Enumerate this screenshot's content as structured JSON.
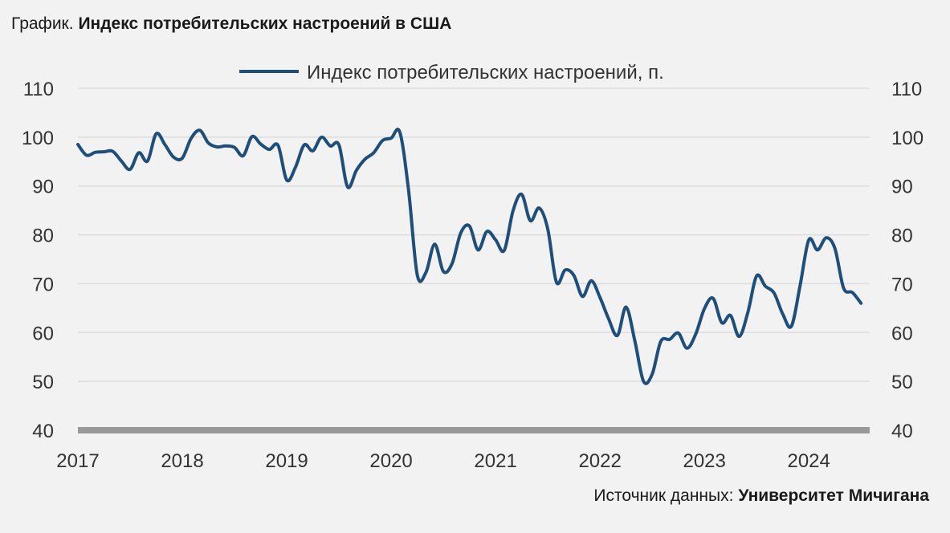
{
  "title": {
    "prefix": "График.",
    "main": "Индекс потребительских настроений в США"
  },
  "source": {
    "prefix": "Источник данных:",
    "name": "Университет Мичигана"
  },
  "colors": {
    "line": "#1f4e79",
    "axis": "#999999",
    "grid": "#dcdcdc",
    "background": "#f2f2f2"
  },
  "chart_data": {
    "type": "line",
    "title": "Индекс потребительских настроений в США",
    "legend": {
      "position": "top-center"
    },
    "grid": true,
    "ylim": [
      40,
      110
    ],
    "yticks": [
      110,
      100,
      90,
      80,
      70,
      60,
      50,
      40
    ],
    "xlim": [
      2017.0,
      2024.583
    ],
    "xticks": [
      "2017",
      "2018",
      "2019",
      "2020",
      "2021",
      "2022",
      "2023",
      "2024"
    ],
    "series": [
      {
        "name": "Индекс потребительских настроений, п.",
        "x": [
          2017.0,
          2017.083,
          2017.167,
          2017.25,
          2017.333,
          2017.417,
          2017.5,
          2017.583,
          2017.667,
          2017.75,
          2017.833,
          2017.917,
          2018.0,
          2018.083,
          2018.167,
          2018.25,
          2018.333,
          2018.417,
          2018.5,
          2018.583,
          2018.667,
          2018.75,
          2018.833,
          2018.917,
          2019.0,
          2019.083,
          2019.167,
          2019.25,
          2019.333,
          2019.417,
          2019.5,
          2019.583,
          2019.667,
          2019.75,
          2019.833,
          2019.917,
          2020.0,
          2020.083,
          2020.167,
          2020.25,
          2020.333,
          2020.417,
          2020.5,
          2020.583,
          2020.667,
          2020.75,
          2020.833,
          2020.917,
          2021.0,
          2021.083,
          2021.167,
          2021.25,
          2021.333,
          2021.417,
          2021.5,
          2021.583,
          2021.667,
          2021.75,
          2021.833,
          2021.917,
          2022.0,
          2022.083,
          2022.167,
          2022.25,
          2022.333,
          2022.417,
          2022.5,
          2022.583,
          2022.667,
          2022.75,
          2022.833,
          2022.917,
          2023.0,
          2023.083,
          2023.167,
          2023.25,
          2023.333,
          2023.417,
          2023.5,
          2023.583,
          2023.667,
          2023.75,
          2023.833,
          2023.917,
          2024.0,
          2024.083,
          2024.167,
          2024.25,
          2024.333,
          2024.417,
          2024.5
        ],
        "values": [
          98.5,
          96.3,
          96.9,
          97.0,
          97.1,
          95.1,
          93.4,
          96.8,
          95.1,
          100.7,
          98.5,
          95.9,
          95.7,
          99.7,
          101.4,
          98.8,
          98.0,
          98.2,
          97.9,
          96.2,
          100.1,
          98.6,
          97.5,
          98.3,
          91.2,
          93.8,
          98.4,
          97.2,
          100.0,
          98.2,
          98.4,
          89.8,
          93.2,
          95.5,
          96.8,
          99.3,
          99.8,
          101.0,
          89.1,
          71.8,
          72.3,
          78.1,
          72.5,
          74.1,
          80.4,
          81.8,
          76.9,
          80.7,
          79.0,
          76.8,
          84.9,
          88.3,
          82.9,
          85.5,
          81.2,
          70.3,
          72.8,
          71.7,
          67.4,
          70.6,
          67.2,
          62.8,
          59.4,
          65.2,
          58.4,
          50.0,
          51.5,
          58.2,
          58.6,
          59.9,
          56.8,
          59.7,
          64.9,
          67.0,
          62.0,
          63.5,
          59.2,
          64.2,
          71.6,
          69.5,
          68.1,
          63.8,
          61.3,
          69.7,
          79.0,
          76.9,
          79.4,
          77.2,
          69.1,
          68.2,
          66.0
        ]
      }
    ]
  }
}
